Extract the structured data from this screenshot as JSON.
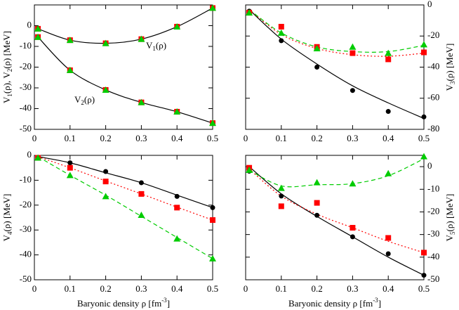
{
  "chart_data": [
    {
      "type": "scatter",
      "xlim": [
        0,
        0.5
      ],
      "xticks": [
        0,
        0.1,
        0.2,
        0.3,
        0.4,
        0.5
      ],
      "ylim": [
        -50,
        10
      ],
      "yticks": [
        -50,
        -40,
        -30,
        -20,
        -10,
        0
      ],
      "yaxis": "left",
      "ylabel": [
        {
          "text": "V"
        },
        {
          "text": "1",
          "sub": true
        },
        {
          "text": "(ρ),  V"
        },
        {
          "text": "2",
          "sub": true
        },
        {
          "text": "(ρ) [MeV]"
        }
      ],
      "x": [
        0.01,
        0.1,
        0.2,
        0.3,
        0.4,
        0.5
      ],
      "series": [
        {
          "color": "#000000",
          "marker": "circle",
          "values": [
            -1.5,
            -7,
            -8.5,
            -6.5,
            -0.5,
            8.5
          ]
        },
        {
          "color": "#ff0000",
          "marker": "square",
          "values": [
            -1.5,
            -7,
            -8.5,
            -6.5,
            -0.5,
            8.5
          ]
        },
        {
          "color": "#00cc00",
          "marker": "triangle",
          "values": [
            -1.5,
            -7,
            -8.5,
            -6.5,
            -0.5,
            8.5
          ]
        },
        {
          "color": "#000000",
          "marker": "circle",
          "values": [
            -5.5,
            -21.5,
            -31,
            -37,
            -41.5,
            -47
          ]
        },
        {
          "color": "#ff0000",
          "marker": "square",
          "values": [
            -5.5,
            -21.5,
            -31,
            -37,
            -41.5,
            -47
          ]
        },
        {
          "color": "#00cc00",
          "marker": "triangle",
          "values": [
            -5.5,
            -21.5,
            -31,
            -37,
            -41.5,
            -47
          ]
        }
      ],
      "fits": [
        {
          "color": "#000000",
          "dash": "solid",
          "values": [
            -1.5,
            -7,
            -8.5,
            -6.5,
            -0.5,
            8.5
          ]
        },
        {
          "color": "#000000",
          "dash": "solid",
          "values": [
            -5.5,
            -21.5,
            -31,
            -37,
            -41.5,
            -47
          ]
        }
      ],
      "annotations": [
        [
          {
            "text": "V"
          },
          {
            "text": "1",
            "sub": true
          },
          {
            "text": "(ρ)"
          }
        ],
        [
          {
            "text": "V"
          },
          {
            "text": "2",
            "sub": true
          },
          {
            "text": "(ρ)"
          }
        ]
      ]
    },
    {
      "type": "scatter",
      "xlim": [
        0,
        0.5
      ],
      "xticks": [
        0,
        0.1,
        0.2,
        0.3,
        0.4,
        0.5
      ],
      "ylim": [
        -80,
        0
      ],
      "yticks": [
        -80,
        -60,
        -40,
        -20,
        0
      ],
      "yaxis": "right",
      "ylabel": [
        {
          "text": "V"
        },
        {
          "text": "3",
          "sub": true
        },
        {
          "text": "(ρ) [MeV]"
        }
      ],
      "x": [
        0.01,
        0.1,
        0.2,
        0.3,
        0.4,
        0.5
      ],
      "series": [
        {
          "color": "#000000",
          "marker": "circle",
          "values": [
            -4,
            -23,
            -40,
            -55,
            -68.5,
            -72
          ]
        },
        {
          "color": "#ff0000",
          "marker": "square",
          "values": [
            -5,
            -14,
            -27,
            -31,
            -35,
            -30.5
          ]
        },
        {
          "color": "#00cc00",
          "marker": "triangle",
          "values": [
            -5,
            -18,
            -28,
            -27,
            -31,
            -25.5
          ]
        }
      ],
      "fits": [
        {
          "color": "#000000",
          "dash": "solid",
          "values": [
            -3,
            -22,
            -38,
            -52,
            -63,
            -73
          ]
        },
        {
          "color": "#ff0000",
          "dash": "dotted",
          "values": [
            -3,
            -19,
            -28,
            -32,
            -33,
            -31
          ]
        },
        {
          "color": "#00cc00",
          "dash": "dashed",
          "values": [
            -3,
            -18,
            -27,
            -30,
            -30,
            -26
          ]
        }
      ]
    },
    {
      "type": "scatter",
      "xlim": [
        0,
        0.5
      ],
      "xticks": [
        0,
        0.1,
        0.2,
        0.3,
        0.4,
        0.5
      ],
      "ylim": [
        -50,
        0
      ],
      "yticks": [
        -50,
        -40,
        -30,
        -20,
        -10,
        0
      ],
      "yaxis": "left",
      "ylabel": [
        {
          "text": "V"
        },
        {
          "text": "4",
          "sub": true
        },
        {
          "text": "(ρ) [MeV]"
        }
      ],
      "xlabel": [
        {
          "text": "Baryonic density ρ [fm"
        },
        {
          "text": "-3",
          "sup": true
        },
        {
          "text": "]"
        }
      ],
      "x": [
        0.01,
        0.1,
        0.2,
        0.3,
        0.4,
        0.5
      ],
      "series": [
        {
          "color": "#000000",
          "marker": "circle",
          "values": [
            -1,
            -3,
            -6.5,
            -11,
            -16.5,
            -21
          ]
        },
        {
          "color": "#ff0000",
          "marker": "square",
          "values": [
            -1,
            -5,
            -10.5,
            -15.5,
            -21,
            -26
          ]
        },
        {
          "color": "#00cc00",
          "marker": "triangle",
          "values": [
            -1,
            -8,
            -16.5,
            -24,
            -33.5,
            -41.5
          ]
        }
      ],
      "fits": [
        {
          "color": "#000000",
          "dash": "solid",
          "values": [
            -0.5,
            -3,
            -7,
            -11,
            -16,
            -21
          ]
        },
        {
          "color": "#ff0000",
          "dash": "dotted",
          "values": [
            -0.5,
            -5,
            -10.3,
            -15.5,
            -20.8,
            -26
          ]
        },
        {
          "color": "#00cc00",
          "dash": "dashed",
          "values": [
            -0.5,
            -8,
            -16,
            -24.5,
            -33,
            -41.5
          ]
        }
      ]
    },
    {
      "type": "scatter",
      "xlim": [
        0,
        0.5
      ],
      "xticks": [
        0,
        0.1,
        0.2,
        0.3,
        0.4,
        0.5
      ],
      "ylim": [
        -50,
        5
      ],
      "yticks": [
        -50,
        -40,
        -30,
        -20,
        -10,
        0
      ],
      "yaxis": "right",
      "ylabel": [
        {
          "text": "V"
        },
        {
          "text": "5",
          "sub": true
        },
        {
          "text": "(ρ) [MeV]"
        }
      ],
      "xlabel": [
        {
          "text": "Baryonic density ρ [fm"
        },
        {
          "text": "-3",
          "sup": true
        },
        {
          "text": "]"
        }
      ],
      "x": [
        0.01,
        0.1,
        0.2,
        0.3,
        0.4,
        0.5
      ],
      "series": [
        {
          "color": "#000000",
          "marker": "circle",
          "values": [
            -2,
            -13,
            -21.5,
            -31,
            -38.5,
            -48
          ]
        },
        {
          "color": "#ff0000",
          "marker": "square",
          "values": [
            -0.5,
            -17.5,
            -16,
            -27,
            -31.5,
            -38
          ]
        },
        {
          "color": "#00cc00",
          "marker": "triangle",
          "values": [
            -1.5,
            -9.5,
            -7,
            -7.5,
            -3,
            4.5
          ]
        }
      ],
      "fits": [
        {
          "color": "#000000",
          "dash": "solid",
          "values": [
            0,
            -12,
            -22,
            -31,
            -40,
            -48
          ]
        },
        {
          "color": "#ff0000",
          "dash": "dotted",
          "values": [
            -1,
            -13,
            -21,
            -27,
            -33,
            -38
          ]
        },
        {
          "color": "#00cc00",
          "dash": "dashed",
          "values": [
            -1.5,
            -8.5,
            -8,
            -7.5,
            -4,
            3.5
          ]
        }
      ]
    }
  ]
}
